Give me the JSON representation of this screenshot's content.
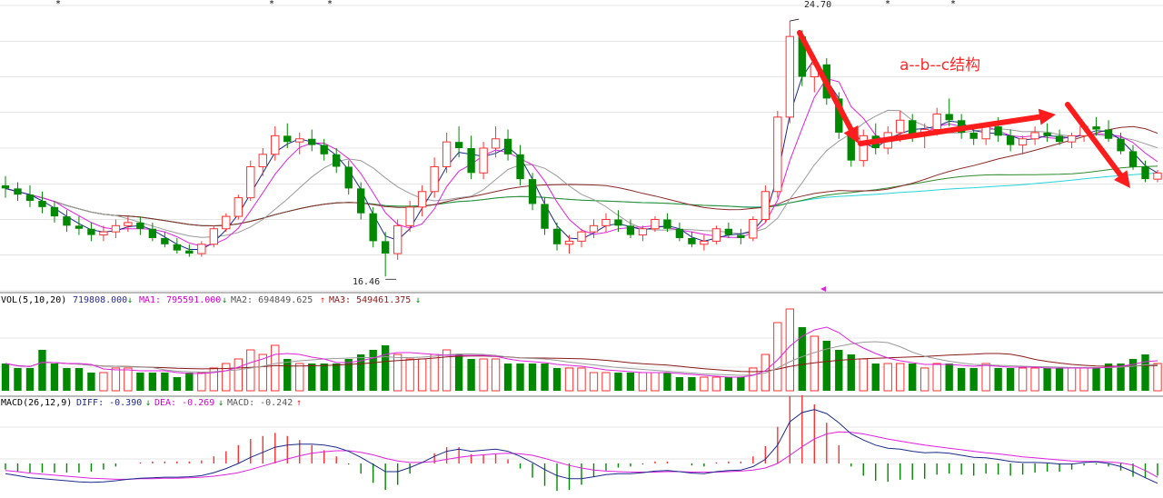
{
  "chart_data": {
    "type": "candlestick",
    "price_panel": {
      "high_label": "24.70",
      "low_label": "16.46",
      "high": 24.7,
      "low": 16.46,
      "ylim": [
        16.0,
        25.2
      ],
      "ohlc": [
        [
          19.4,
          19.7,
          19.0,
          19.3
        ],
        [
          19.3,
          19.5,
          18.9,
          19.1
        ],
        [
          19.1,
          19.4,
          18.7,
          18.9
        ],
        [
          18.9,
          19.2,
          18.5,
          18.7
        ],
        [
          18.7,
          18.9,
          18.2,
          18.4
        ],
        [
          18.4,
          18.6,
          17.9,
          18.1
        ],
        [
          18.1,
          18.4,
          17.8,
          18.0
        ],
        [
          18.0,
          18.2,
          17.6,
          17.8
        ],
        [
          17.8,
          18.1,
          17.6,
          17.9
        ],
        [
          17.9,
          18.3,
          17.7,
          18.1
        ],
        [
          18.1,
          18.4,
          17.9,
          18.2
        ],
        [
          18.2,
          18.4,
          17.8,
          18.0
        ],
        [
          18.0,
          18.2,
          17.6,
          17.7
        ],
        [
          17.7,
          17.9,
          17.4,
          17.5
        ],
        [
          17.5,
          17.7,
          17.2,
          17.3
        ],
        [
          17.3,
          17.5,
          17.1,
          17.2
        ],
        [
          17.2,
          17.6,
          17.1,
          17.5
        ],
        [
          17.5,
          18.1,
          17.4,
          18.0
        ],
        [
          18.0,
          18.5,
          17.9,
          18.4
        ],
        [
          18.4,
          19.1,
          18.3,
          19.0
        ],
        [
          19.0,
          20.2,
          18.9,
          20.0
        ],
        [
          20.0,
          20.6,
          19.7,
          20.4
        ],
        [
          20.4,
          21.3,
          20.2,
          21.0
        ],
        [
          21.0,
          21.4,
          20.6,
          20.8
        ],
        [
          20.8,
          21.1,
          20.4,
          20.9
        ],
        [
          20.9,
          21.2,
          20.5,
          20.7
        ],
        [
          20.7,
          20.9,
          20.2,
          20.4
        ],
        [
          20.4,
          20.6,
          19.8,
          20.0
        ],
        [
          20.0,
          20.2,
          19.1,
          19.3
        ],
        [
          19.3,
          19.5,
          18.3,
          18.5
        ],
        [
          18.5,
          18.7,
          17.4,
          17.6
        ],
        [
          17.6,
          17.9,
          16.46,
          17.2
        ],
        [
          17.2,
          18.3,
          17.0,
          18.1
        ],
        [
          18.1,
          18.9,
          17.9,
          18.7
        ],
        [
          18.7,
          19.4,
          18.4,
          19.2
        ],
        [
          19.2,
          20.3,
          19.0,
          20.0
        ],
        [
          20.0,
          21.1,
          19.8,
          20.8
        ],
        [
          20.8,
          21.3,
          20.3,
          20.6
        ],
        [
          20.6,
          21.0,
          19.6,
          19.8
        ],
        [
          19.8,
          20.8,
          19.6,
          20.6
        ],
        [
          20.6,
          21.3,
          20.3,
          20.9
        ],
        [
          20.9,
          21.2,
          20.2,
          20.4
        ],
        [
          20.4,
          20.7,
          19.4,
          19.6
        ],
        [
          19.6,
          19.8,
          18.6,
          18.8
        ],
        [
          18.8,
          19.0,
          17.8,
          18.0
        ],
        [
          18.0,
          18.2,
          17.3,
          17.5
        ],
        [
          17.5,
          17.8,
          17.2,
          17.6
        ],
        [
          17.6,
          18.0,
          17.4,
          17.9
        ],
        [
          17.9,
          18.3,
          17.7,
          18.1
        ],
        [
          18.1,
          18.5,
          17.9,
          18.3
        ],
        [
          18.3,
          18.6,
          17.9,
          18.1
        ],
        [
          18.1,
          18.3,
          17.7,
          17.8
        ],
        [
          17.8,
          18.1,
          17.6,
          18.0
        ],
        [
          18.0,
          18.4,
          17.9,
          18.3
        ],
        [
          18.3,
          18.5,
          17.9,
          18.0
        ],
        [
          18.0,
          18.2,
          17.6,
          17.7
        ],
        [
          17.7,
          17.9,
          17.4,
          17.5
        ],
        [
          17.5,
          17.8,
          17.3,
          17.6
        ],
        [
          17.6,
          18.1,
          17.5,
          18.0
        ],
        [
          18.0,
          18.2,
          17.7,
          17.8
        ],
        [
          17.8,
          18.0,
          17.5,
          17.7
        ],
        [
          17.7,
          18.4,
          17.6,
          18.3
        ],
        [
          18.3,
          19.4,
          18.2,
          19.2
        ],
        [
          19.2,
          21.8,
          19.0,
          21.6
        ],
        [
          21.6,
          24.7,
          21.4,
          24.2
        ],
        [
          24.2,
          24.4,
          22.6,
          22.9
        ],
        [
          22.9,
          23.6,
          22.4,
          23.3
        ],
        [
          23.3,
          23.5,
          22.0,
          22.2
        ],
        [
          22.2,
          22.4,
          20.9,
          21.1
        ],
        [
          21.1,
          21.3,
          20.0,
          20.2
        ],
        [
          20.2,
          21.2,
          20.0,
          21.0
        ],
        [
          21.0,
          21.4,
          20.4,
          20.6
        ],
        [
          20.6,
          21.3,
          20.4,
          21.1
        ],
        [
          21.1,
          21.8,
          20.8,
          21.5
        ],
        [
          21.5,
          21.7,
          20.8,
          21.0
        ],
        [
          21.0,
          21.4,
          20.6,
          21.2
        ],
        [
          21.2,
          21.9,
          21.0,
          21.7
        ],
        [
          21.7,
          22.2,
          21.3,
          21.5
        ],
        [
          21.5,
          21.7,
          20.9,
          21.1
        ],
        [
          21.1,
          21.3,
          20.7,
          20.9
        ],
        [
          20.9,
          21.4,
          20.7,
          21.3
        ],
        [
          21.3,
          21.6,
          20.8,
          21.0
        ],
        [
          21.0,
          21.2,
          20.5,
          20.7
        ],
        [
          20.7,
          21.0,
          20.4,
          20.9
        ],
        [
          20.9,
          21.3,
          20.7,
          21.1
        ],
        [
          21.1,
          21.4,
          20.8,
          21.0
        ],
        [
          21.0,
          21.2,
          20.7,
          20.8
        ],
        [
          20.8,
          21.1,
          20.6,
          21.0
        ],
        [
          21.0,
          21.4,
          20.8,
          21.3
        ],
        [
          21.3,
          21.6,
          21.0,
          21.2
        ],
        [
          21.2,
          21.5,
          20.8,
          20.9
        ],
        [
          20.9,
          21.1,
          20.4,
          20.5
        ],
        [
          20.5,
          20.7,
          19.9,
          20.0
        ],
        [
          20.0,
          20.2,
          19.5,
          19.6
        ],
        [
          19.6,
          19.9,
          19.5,
          19.8
        ]
      ]
    },
    "volume_panel": {
      "label": "VOL(5,10,20)",
      "value": "719808.000",
      "ma1_label": "MA1: 795591.000",
      "ma2_label": "MA2: 694849.625",
      "ma3_label": "MA3: 549461.375",
      "values": [
        6,
        5,
        5,
        9,
        6,
        5,
        5,
        4,
        4,
        5,
        5,
        4,
        4,
        4,
        3,
        4,
        4,
        5,
        6,
        7,
        9,
        8,
        10,
        7,
        6,
        6,
        6,
        6,
        7,
        8,
        9,
        10,
        8,
        7,
        7,
        8,
        9,
        8,
        7,
        7,
        7,
        6,
        6,
        6,
        6,
        5,
        5,
        5,
        4,
        4,
        4,
        4,
        4,
        4,
        4,
        3,
        3,
        3,
        3,
        3,
        3,
        5,
        8,
        15,
        18,
        14,
        12,
        11,
        9,
        8,
        7,
        6,
        6,
        6,
        6,
        5,
        6,
        6,
        5,
        5,
        6,
        5,
        5,
        5,
        5,
        5,
        5,
        5,
        5,
        5,
        6,
        6,
        7,
        8,
        6
      ]
    },
    "macd_panel": {
      "label": "MACD(26,12,9)",
      "diff_label": "DIFF: -0.390",
      "dea_label": "DEA: -0.269",
      "macd_label": "MACD: -0.242",
      "diff": [
        -0.2,
        -0.24,
        -0.28,
        -0.3,
        -0.32,
        -0.34,
        -0.36,
        -0.37,
        -0.36,
        -0.34,
        -0.31,
        -0.29,
        -0.28,
        -0.27,
        -0.27,
        -0.26,
        -0.24,
        -0.18,
        -0.1,
        0.0,
        0.12,
        0.22,
        0.32,
        0.36,
        0.38,
        0.38,
        0.36,
        0.32,
        0.24,
        0.12,
        -0.02,
        -0.16,
        -0.16,
        -0.08,
        0.02,
        0.14,
        0.24,
        0.28,
        0.24,
        0.26,
        0.28,
        0.24,
        0.14,
        0.02,
        -0.12,
        -0.24,
        -0.3,
        -0.3,
        -0.26,
        -0.22,
        -0.2,
        -0.2,
        -0.18,
        -0.15,
        -0.14,
        -0.16,
        -0.19,
        -0.2,
        -0.16,
        -0.14,
        -0.13,
        -0.06,
        0.08,
        0.36,
        0.82,
        1.0,
        1.06,
        0.98,
        0.8,
        0.58,
        0.46,
        0.36,
        0.3,
        0.28,
        0.24,
        0.21,
        0.22,
        0.2,
        0.16,
        0.12,
        0.11,
        0.08,
        0.04,
        0.02,
        0.02,
        0.01,
        -0.01,
        -0.01,
        0.02,
        0.03,
        0.0,
        -0.06,
        -0.16,
        -0.28,
        -0.39
      ],
      "dea": [
        -0.14,
        -0.16,
        -0.19,
        -0.21,
        -0.23,
        -0.25,
        -0.27,
        -0.29,
        -0.3,
        -0.31,
        -0.31,
        -0.3,
        -0.3,
        -0.29,
        -0.29,
        -0.28,
        -0.27,
        -0.25,
        -0.22,
        -0.18,
        -0.12,
        -0.05,
        0.02,
        0.09,
        0.15,
        0.2,
        0.23,
        0.25,
        0.25,
        0.22,
        0.17,
        0.1,
        0.05,
        0.02,
        0.02,
        0.04,
        0.08,
        0.12,
        0.15,
        0.17,
        0.19,
        0.2,
        0.19,
        0.16,
        0.1,
        0.03,
        -0.04,
        -0.09,
        -0.13,
        -0.15,
        -0.16,
        -0.17,
        -0.17,
        -0.17,
        -0.16,
        -0.16,
        -0.17,
        -0.17,
        -0.17,
        -0.16,
        -0.15,
        -0.13,
        -0.09,
        0.0,
        0.16,
        0.33,
        0.48,
        0.58,
        0.62,
        0.61,
        0.58,
        0.53,
        0.48,
        0.44,
        0.4,
        0.36,
        0.33,
        0.3,
        0.27,
        0.24,
        0.21,
        0.19,
        0.16,
        0.13,
        0.11,
        0.09,
        0.07,
        0.05,
        0.04,
        0.04,
        0.03,
        0.01,
        -0.03,
        -0.14,
        -0.27
      ]
    },
    "annotations": {
      "structure_label": "a--b--c结构"
    }
  }
}
